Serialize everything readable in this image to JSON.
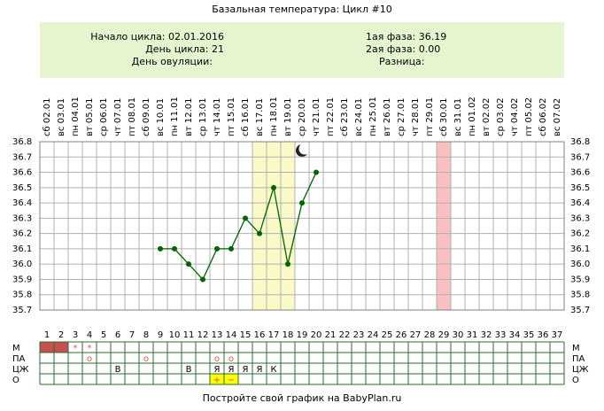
{
  "chart_data": {
    "type": "line",
    "title": "Базальная температура: Цикл #10",
    "info_left": [
      "Начало цикла: 02.01.2016",
      "День цикла: 21",
      "День овуляции:"
    ],
    "info_right": [
      "1ая фаза: 36.19",
      "2ая фаза: 0.00",
      "Разница:"
    ],
    "categories": [
      "сб 02.01",
      "вс 03.01",
      "пн 04.01",
      "вт 05.01",
      "ср 06.01",
      "чт 07.01",
      "пт 08.01",
      "сб 09.01",
      "вс 10.01",
      "пн 11.01",
      "вт 12.01",
      "ср 13.01",
      "чт 14.01",
      "пт 15.01",
      "сб 16.01",
      "вс 17.01",
      "пн 18.01",
      "вт 19.01",
      "ср 20.01",
      "чт 21.01",
      "пт 22.01",
      "сб 23.01",
      "вс 24.01",
      "пн 25.01",
      "вт 26.01",
      "ср 27.01",
      "чт 28.01",
      "пт 29.01",
      "сб 30.01",
      "вс 31.01",
      "пн 01.02",
      "вт 02.02",
      "ср 03.02",
      "чт 04.02",
      "пт 05.02",
      "сб 06.02",
      "вс 07.02"
    ],
    "day_numbers": [
      1,
      2,
      3,
      4,
      5,
      6,
      7,
      8,
      9,
      10,
      11,
      12,
      13,
      14,
      15,
      16,
      17,
      18,
      19,
      20,
      21,
      22,
      23,
      24,
      25,
      26,
      27,
      28,
      29,
      30,
      31,
      32,
      33,
      34,
      35,
      36,
      37
    ],
    "values": [
      null,
      null,
      null,
      null,
      null,
      null,
      null,
      null,
      36.1,
      36.1,
      36.0,
      35.9,
      36.1,
      36.1,
      36.3,
      36.2,
      36.5,
      36.0,
      36.4,
      36.6,
      null,
      null,
      null,
      null,
      null,
      null,
      null,
      null,
      null,
      null,
      null,
      null,
      null,
      null,
      null,
      null,
      null
    ],
    "color": "#006400",
    "ylim": [
      35.7,
      36.8
    ],
    "yticks": [
      35.7,
      35.8,
      35.9,
      {
        "value": 36.0,
        "label": "36.0"
      },
      36.1,
      36.2,
      36.3,
      36.4,
      36.5,
      36.6,
      36.7,
      36.8
    ],
    "grid": true,
    "highlights": [
      {
        "from": 16,
        "to": 18,
        "color": "#fafac8"
      },
      {
        "from": 29,
        "to": 29,
        "color": "#f8c0c0"
      }
    ],
    "rows": [
      {
        "label": "М",
        "cells": [
          {
            "day": 1,
            "fill": "#c85050"
          },
          {
            "day": 2,
            "fill": "#c85050"
          },
          {
            "day": 3,
            "text": "*",
            "color": "#e05050"
          },
          {
            "day": 4,
            "text": "*",
            "color": "#e05050"
          }
        ]
      },
      {
        "label": "ПА",
        "cells": [
          {
            "day": 4,
            "text": "о",
            "color": "#e05050"
          },
          {
            "day": 8,
            "text": "о",
            "color": "#e05050"
          },
          {
            "day": 13,
            "text": "о",
            "color": "#e05050"
          },
          {
            "day": 14,
            "text": "о",
            "color": "#e05050"
          }
        ]
      },
      {
        "label": "ЦЖ",
        "cells": [
          {
            "day": 6,
            "text": "В"
          },
          {
            "day": 11,
            "text": "В"
          },
          {
            "day": 13,
            "text": "Я"
          },
          {
            "day": 14,
            "text": "Я"
          },
          {
            "day": 15,
            "text": "Я"
          },
          {
            "day": 16,
            "text": "Я"
          },
          {
            "day": 17,
            "text": "К"
          }
        ]
      },
      {
        "label": "О",
        "cells": [
          {
            "day": 13,
            "text": "+",
            "fill": "#ffff00",
            "color": "#e05050"
          },
          {
            "day": 14,
            "text": "−",
            "fill": "#ffff00",
            "color": "#e05050"
          }
        ]
      }
    ],
    "footer": "Постройте свой график на BabyPlan.ru"
  }
}
